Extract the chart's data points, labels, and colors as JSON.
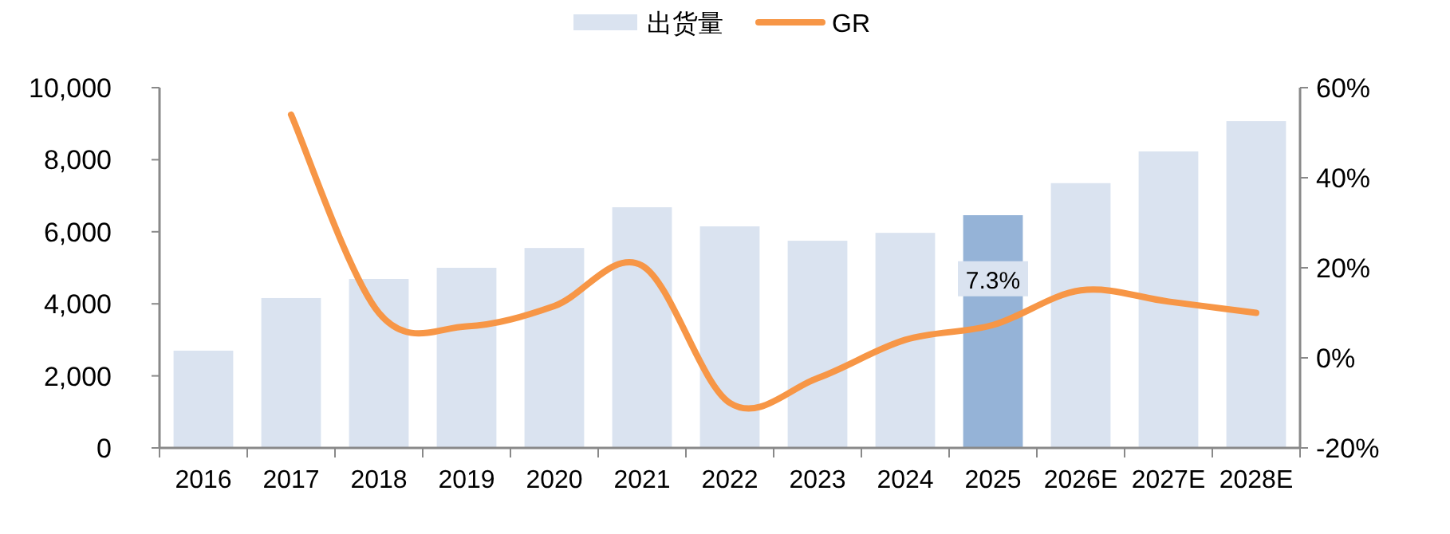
{
  "chart_data": {
    "type": "bar",
    "categories": [
      "2016",
      "2017",
      "2018",
      "2019",
      "2020",
      "2021",
      "2022",
      "2023",
      "2024",
      "2025",
      "2026E",
      "2027E",
      "2028E"
    ],
    "series": [
      {
        "name": "出货量",
        "color": "#dae3f0",
        "colors": [
          "#dae3f0",
          "#dae3f0",
          "#dae3f0",
          "#dae3f0",
          "#dae3f0",
          "#dae3f0",
          "#dae3f0",
          "#dae3f0",
          "#dae3f0",
          "#95b3d7",
          "#dae3f0",
          "#dae3f0",
          "#dae3f0"
        ],
        "values": [
          2700,
          4160,
          4690,
          5000,
          5550,
          6680,
          6150,
          5750,
          5970,
          6460,
          7350,
          8230,
          9070
        ]
      },
      {
        "name": "GR",
        "type": "line",
        "axis": "y2",
        "color": "#f79646",
        "values": [
          null,
          54,
          10,
          7,
          11.5,
          20.5,
          -10,
          -4.5,
          4,
          7.3,
          15,
          12.5,
          10
        ],
        "value_labels": [
          null,
          null,
          null,
          null,
          null,
          null,
          null,
          null,
          null,
          "7.3%",
          null,
          null,
          null
        ]
      }
    ],
    "ylim": [
      0,
      10000
    ],
    "yticks": [
      0,
      {
        "value": 2000,
        "label": "2,000"
      },
      {
        "value": 4000,
        "label": "4,000"
      },
      {
        "value": 6000,
        "label": "6,000"
      },
      {
        "value": 8000,
        "label": "8,000"
      },
      {
        "value": 10000,
        "label": "10,000"
      }
    ],
    "y2lim": [
      -20,
      60
    ],
    "y2ticks": [
      {
        "value": -20,
        "label": "-20%"
      },
      {
        "value": 0,
        "label": "0%"
      },
      {
        "value": 20,
        "label": "20%"
      },
      {
        "value": 40,
        "label": "40%"
      },
      {
        "value": 60,
        "label": "60%"
      }
    ],
    "legend": "top",
    "grid": false
  }
}
